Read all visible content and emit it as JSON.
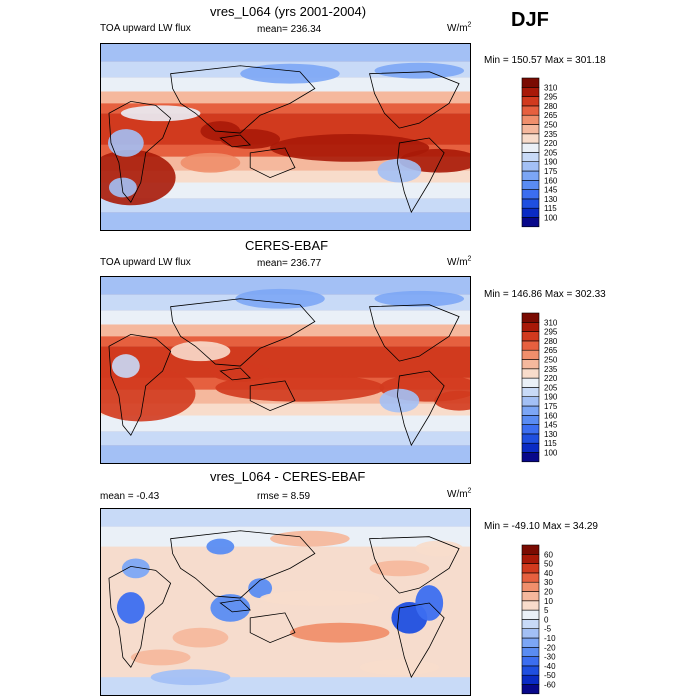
{
  "season": "DJF",
  "panels": [
    {
      "title": "vres_L064 (yrs 2001-2004)",
      "left_label": "TOA upward LW flux",
      "stat_label": "mean= 236.34",
      "stat2_label": "",
      "units": "W/m",
      "units_sup": "2",
      "minmax": "Min = 150.57 Max = 301.18",
      "field": "model"
    },
    {
      "title": "CERES-EBAF",
      "left_label": "TOA upward LW flux",
      "stat_label": "mean= 236.77",
      "stat2_label": "",
      "units": "W/m",
      "units_sup": "2",
      "minmax": "Min = 146.86 Max = 302.33",
      "field": "obs"
    },
    {
      "title": "vres_L064 - CERES-EBAF",
      "left_label": "mean =  -0.43",
      "stat_label": "rmse =   8.59",
      "stat2_label": "",
      "units": "W/m",
      "units_sup": "2",
      "minmax": "Min = -49.10 Max =  34.29",
      "field": "diff"
    }
  ],
  "chart_data": [
    {
      "type": "heatmap",
      "title": "vres_L064 (yrs 2001-2004)",
      "variable": "TOA upward LW flux",
      "units": "W/m2",
      "mean": 236.34,
      "min": 150.57,
      "max": 301.18,
      "colorbar_levels": [
        100,
        115,
        130,
        145,
        160,
        175,
        190,
        205,
        220,
        235,
        250,
        265,
        280,
        295,
        310
      ],
      "colorbar_colors": [
        "#08088a",
        "#0a2bc4",
        "#1f4fe0",
        "#3c6ef0",
        "#5a8cf2",
        "#7ca6f5",
        "#a3c0f5",
        "#c8daf7",
        "#eaf0f7",
        "#f8dccb",
        "#f5b89d",
        "#f08f6c",
        "#e6603f",
        "#d13a1e",
        "#a81908",
        "#7a0b02"
      ]
    },
    {
      "type": "heatmap",
      "title": "CERES-EBAF",
      "variable": "TOA upward LW flux",
      "units": "W/m2",
      "mean": 236.77,
      "min": 146.86,
      "max": 302.33,
      "colorbar_levels": [
        100,
        115,
        130,
        145,
        160,
        175,
        190,
        205,
        220,
        235,
        250,
        265,
        280,
        295,
        310
      ],
      "colorbar_colors": [
        "#08088a",
        "#0a2bc4",
        "#1f4fe0",
        "#3c6ef0",
        "#5a8cf2",
        "#7ca6f5",
        "#a3c0f5",
        "#c8daf7",
        "#eaf0f7",
        "#f8dccb",
        "#f5b89d",
        "#f08f6c",
        "#e6603f",
        "#d13a1e",
        "#a81908",
        "#7a0b02"
      ]
    },
    {
      "type": "heatmap",
      "title": "vres_L064 - CERES-EBAF",
      "mean": -0.43,
      "rmse": 8.59,
      "units": "W/m2",
      "min": -49.1,
      "max": 34.29,
      "colorbar_levels": [
        -60,
        -50,
        -40,
        -30,
        -20,
        -10,
        -5,
        0,
        5,
        10,
        20,
        30,
        40,
        50,
        60
      ],
      "colorbar_colors": [
        "#08088a",
        "#0a2bc4",
        "#1f4fe0",
        "#3c6ef0",
        "#5a8cf2",
        "#7ca6f5",
        "#a3c0f5",
        "#c8daf7",
        "#eaf0f7",
        "#f8dccb",
        "#f5b89d",
        "#f08f6c",
        "#e6603f",
        "#d13a1e",
        "#a81908",
        "#7a0b02"
      ]
    }
  ]
}
